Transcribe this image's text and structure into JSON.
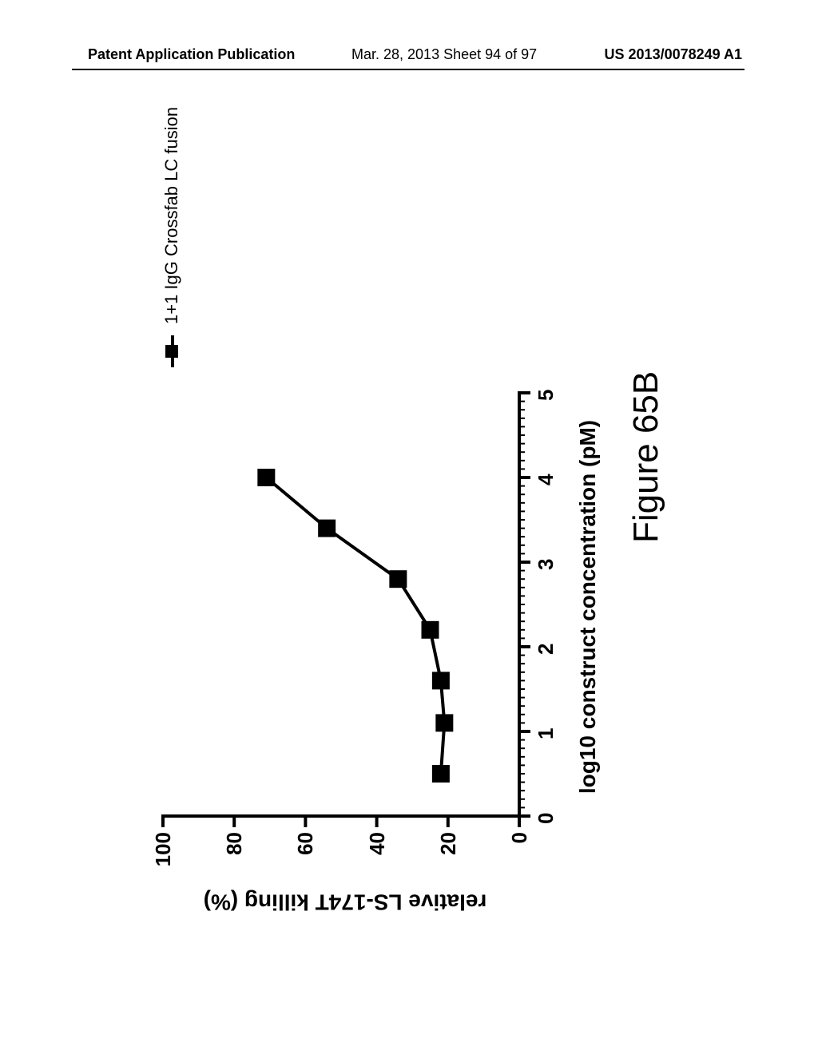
{
  "header": {
    "left": "Patent Application Publication",
    "center": "Mar. 28, 2013  Sheet 94 of 97",
    "right": "US 2013/0078249 A1"
  },
  "figure": {
    "caption": "Figure 65B",
    "legend": {
      "label": "1+1 IgG Crossfab LC fusion",
      "marker": "square",
      "line_color": "#000000",
      "marker_color": "#000000"
    },
    "chart": {
      "type": "line",
      "ylabel": "relative LS-174T killing (%)",
      "xlabel": "log10 construct concentration (pM)",
      "xlim": [
        0,
        5
      ],
      "ylim": [
        0,
        100
      ],
      "x_major_ticks": [
        0,
        1,
        2,
        3,
        4,
        5
      ],
      "x_minor_step": 0.1,
      "y_major_ticks": [
        0,
        20,
        40,
        60,
        80,
        100
      ],
      "axis_color": "#000000",
      "axis_width": 4,
      "major_tick_len": 14,
      "minor_tick_len": 7,
      "tick_fontsize": 26,
      "tick_fontweight": 700,
      "label_fontsize": 28,
      "label_fontweight": 700,
      "line_color": "#000000",
      "line_width": 4,
      "marker_size": 22,
      "marker_color": "#000000",
      "series": {
        "x": [
          0.5,
          1.1,
          1.6,
          2.2,
          2.8,
          3.4,
          4.0
        ],
        "y": [
          22,
          21,
          22,
          25,
          34,
          54,
          71
        ]
      },
      "background_color": "#ffffff",
      "caption_fontsize": 44
    }
  }
}
